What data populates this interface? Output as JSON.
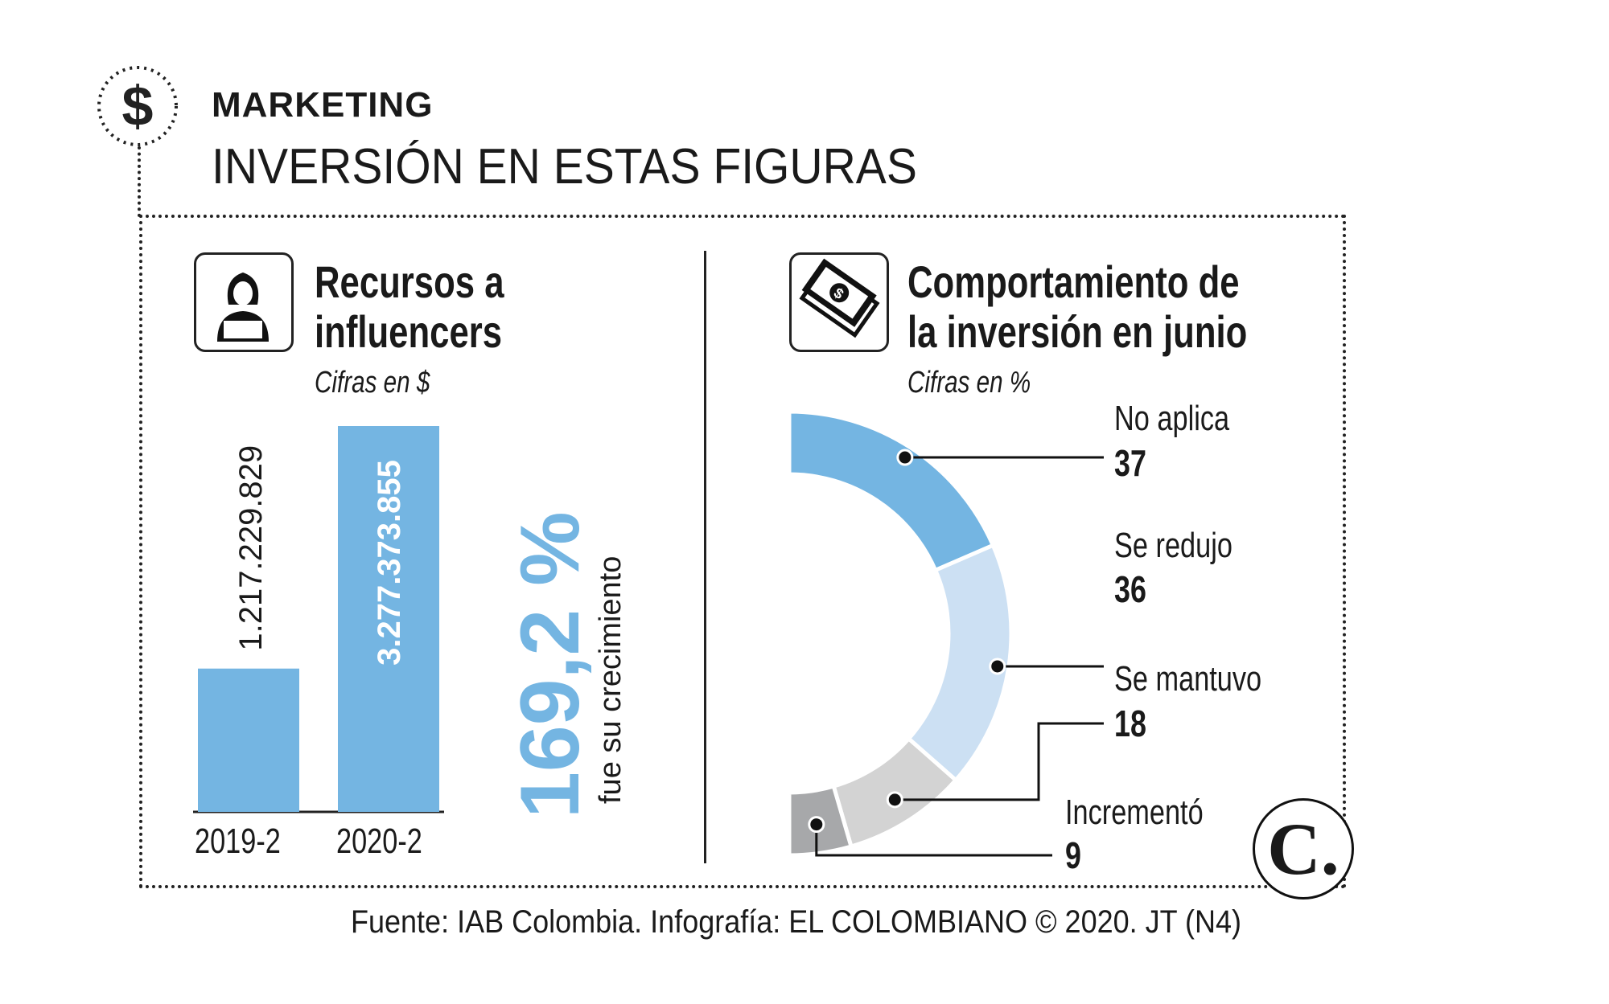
{
  "header": {
    "kicker": "MARKETING",
    "title": "INVERSIÓN EN ESTAS FIGURAS",
    "icon": "dollar-icon"
  },
  "colors": {
    "bar": "#74b5e2",
    "no_aplica": "#74b5e2",
    "se_redujo": "#cce0f3",
    "se_mantuvo": "#d3d3d3",
    "incremento": "#a7a8aa",
    "text": "#1a1a1a"
  },
  "left_panel": {
    "title_line1": "Recursos a",
    "title_line2": "influencers",
    "subtitle": "Cifras en $",
    "icon": "influencer-laptop-icon",
    "growth_value": "169,2 %",
    "growth_caption": "fue su crecimiento"
  },
  "right_panel": {
    "title_line1": "Comportamiento de",
    "title_line2": "la inversión en junio",
    "subtitle": "Cifras en %",
    "icon": "money-bills-icon"
  },
  "chart_data": [
    {
      "type": "bar",
      "categories": [
        "2019-2",
        "2020-2"
      ],
      "values": [
        1217229829,
        3277373855
      ],
      "value_labels": [
        "1.217.229.829",
        "3.277.373.855"
      ],
      "title": "Recursos a influencers",
      "ylabel": "Cifras en $"
    },
    {
      "type": "pie",
      "variant": "half-donut",
      "categories": [
        "No aplica",
        "Se redujo",
        "Se mantuvo",
        "Incrementó"
      ],
      "values": [
        37,
        36,
        18,
        9
      ],
      "value_labels": [
        "37",
        "36",
        "18",
        "9"
      ],
      "title": "Comportamiento de la inversión en junio",
      "ylabel": "Cifras en %"
    }
  ],
  "footer": "Fuente: IAB Colombia. Infografía: EL COLOMBIANO © 2020. JT (N4)",
  "logo": "C."
}
